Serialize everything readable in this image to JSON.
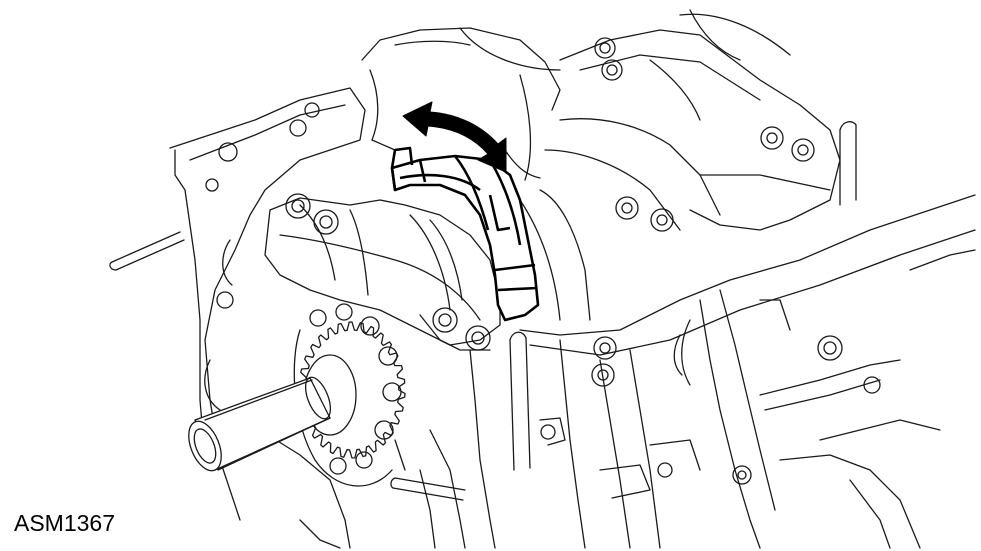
{
  "figure": {
    "code": "ASM1367",
    "line_color": "#1a1a1a",
    "arrow_color": "#000000",
    "background": "#ffffff"
  },
  "icons": {
    "double_arrow": "curved-double-arrow-icon",
    "sprocket": "crankshaft-sprocket-icon"
  }
}
